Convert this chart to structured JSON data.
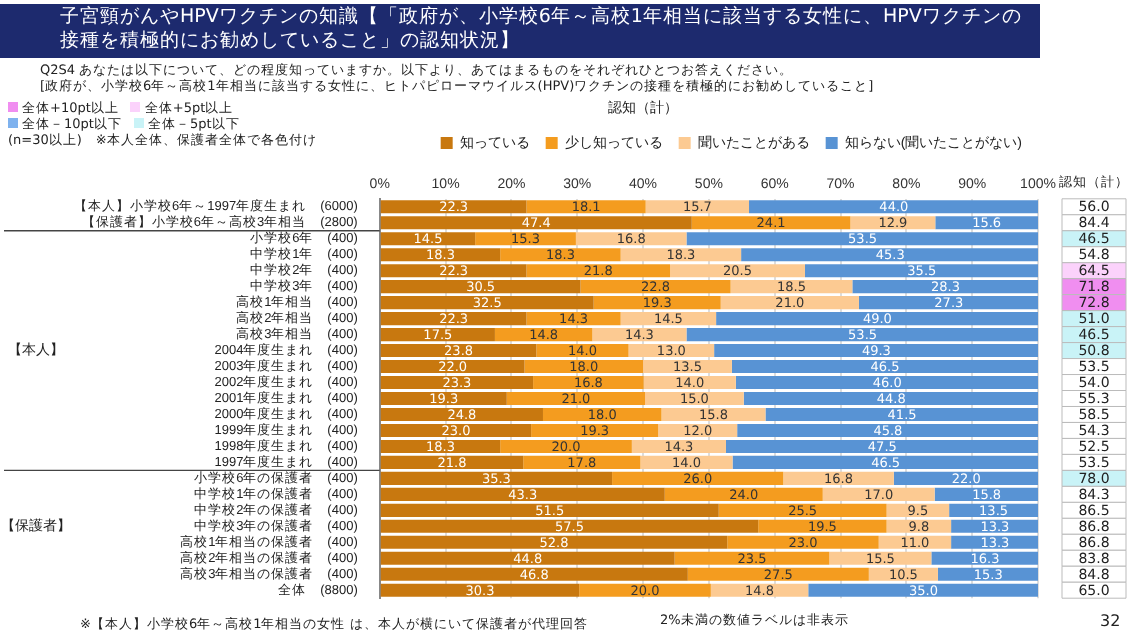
{
  "chart_data": {
    "type": "bar",
    "orientation": "horizontal",
    "stacked": true,
    "title": "子宮頸がんやHPVワクチンの知識【「政府が、小学校6年～高校1年相当に該当する女性に、HPVワクチンの接種を積極的にお勧めしていること」の認知状況】",
    "subtitle": "Q2S4  あなたは以下について、どの程度知っていますか。以下より、あてはまるものをそれぞれひとつお答えください。\n[政府が、小学校6年～高校1年相当に該当する女性に、ヒトパピローマウイルス(HPV)ワクチンの接種を積極的にお勧めしていること]",
    "categories": [
      "【本人】小学校6年～1997年度生まれ　(6000)",
      "【保護者】小学校6年～高校3年相当　(2800)",
      "小学校6年　(400)",
      "中学校1年　(400)",
      "中学校2年　(400)",
      "中学校3年　(400)",
      "高校1年相当　(400)",
      "高校2年相当　(400)",
      "高校3年相当　(400)",
      "2004年度生まれ　(400)",
      "2003年度生まれ　(400)",
      "2002年度生まれ　(400)",
      "2001年度生まれ　(400)",
      "2000年度生まれ　(400)",
      "1999年度生まれ　(400)",
      "1998年度生まれ　(400)",
      "1997年度生まれ　(400)",
      "小学校6年の保護者　(400)",
      "中学校1年の保護者　(400)",
      "中学校2年の保護者　(400)",
      "中学校3年の保護者　(400)",
      "高校1年相当の保護者　(400)",
      "高校2年相当の保護者　(400)",
      "高校3年相当の保護者　(400)",
      "全体　(8800)"
    ],
    "series": [
      {
        "name": "知っている",
        "color": "#c8780f",
        "values": [
          22.3,
          47.4,
          14.5,
          18.3,
          22.3,
          30.5,
          32.5,
          22.3,
          17.5,
          23.8,
          22.0,
          23.3,
          19.3,
          24.8,
          23.0,
          18.3,
          21.8,
          35.3,
          43.3,
          51.5,
          57.5,
          52.8,
          44.8,
          46.8,
          30.3
        ],
        "value_labels": [
          "22.3",
          "47.4",
          "14.5",
          "18.3",
          "22.3",
          "30.5",
          "32.5",
          "22.3",
          "17.5",
          "23.8",
          "22.0",
          "23.3",
          "19.3",
          "24.8",
          "23.0",
          "18.3",
          "21.8",
          "35.3",
          "43.3",
          "51.5",
          "57.5",
          "52.8",
          "44.8",
          "46.8",
          "30.3"
        ]
      },
      {
        "name": "少し知っている",
        "color": "#f49c1f",
        "values": [
          18.1,
          24.1,
          15.3,
          18.3,
          21.8,
          22.8,
          19.3,
          14.3,
          14.8,
          14.0,
          18.0,
          16.8,
          21.0,
          18.0,
          19.3,
          20.0,
          17.8,
          26.0,
          24.0,
          25.5,
          19.5,
          23.0,
          23.5,
          27.5,
          20.0
        ],
        "value_labels": [
          "18.1",
          "24.1",
          "15.3",
          "18.3",
          "21.8",
          "22.8",
          "19.3",
          "14.3",
          "14.8",
          "14.0",
          "18.0",
          "16.8",
          "21.0",
          "18.0",
          "19.3",
          "20.0",
          "17.8",
          "26.0",
          "24.0",
          "25.5",
          "19.5",
          "23.0",
          "23.5",
          "27.5",
          "20.0"
        ]
      },
      {
        "name": "聞いたことがある",
        "color": "#fcca92",
        "values": [
          15.7,
          12.9,
          16.8,
          18.3,
          20.5,
          18.5,
          21.0,
          14.5,
          14.3,
          13.0,
          13.5,
          14.0,
          15.0,
          15.8,
          12.0,
          14.3,
          14.0,
          16.8,
          17.0,
          9.5,
          9.8,
          11.0,
          15.5,
          10.5,
          14.8
        ],
        "value_labels": [
          "15.7",
          "12.9",
          "16.8",
          "18.3",
          "20.5",
          "18.5",
          "21.0",
          "14.5",
          "14.3",
          "13.0",
          "13.5",
          "14.0",
          "15.0",
          "15.8",
          "12.0",
          "14.3",
          "14.0",
          "16.8",
          "17.0",
          "9.5",
          "9.8",
          "11.0",
          "15.5",
          "10.5",
          "14.8"
        ]
      },
      {
        "name": "知らない(聞いたことがない)",
        "color": "#5893d4",
        "values": [
          44.0,
          15.6,
          53.5,
          45.3,
          35.5,
          28.3,
          27.3,
          49.0,
          53.5,
          49.3,
          46.5,
          46.0,
          44.8,
          41.5,
          45.8,
          47.5,
          46.5,
          22.0,
          15.8,
          13.5,
          13.3,
          13.3,
          16.3,
          15.3,
          35.0
        ],
        "value_labels": [
          "44.0",
          "15.6",
          "53.5",
          "45.3",
          "35.5",
          "28.3",
          "27.3",
          "49.0",
          "53.5",
          "49.3",
          "46.5",
          "46.0",
          "44.8",
          "41.5",
          "45.8",
          "47.5",
          "46.5",
          "22.0",
          "15.8",
          "13.5",
          "13.3",
          "13.3",
          "16.3",
          "15.3",
          "35.0"
        ]
      }
    ],
    "xlim": [
      0,
      100
    ],
    "xticks": [
      {
        "value": 0,
        "label": "0%"
      },
      {
        "value": 10,
        "label": "10%"
      },
      {
        "value": 20,
        "label": "20%"
      },
      {
        "value": 30,
        "label": "30%"
      },
      {
        "value": 40,
        "label": "40%"
      },
      {
        "value": 50,
        "label": "50%"
      },
      {
        "value": 60,
        "label": "60%"
      },
      {
        "value": 70,
        "label": "70%"
      },
      {
        "value": 80,
        "label": "80%"
      },
      {
        "value": 90,
        "label": "90%"
      },
      {
        "value": 100,
        "label": "100%"
      }
    ],
    "grid": "x",
    "legend": "top",
    "annotations": [
      "認知（計）",
      "認知（計）",
      "【本人】",
      "【保護者】",
      "全体+10pt以上",
      "全体+5pt以上",
      "全体－10pt以下",
      "全体－5pt以下",
      "(n=30以上)　※本人全体、保護者全体で各色付け",
      "※【本人】小学校6年～高校1年相当の女性 は、本人が横にいて保護者が代理回答",
      "2%未満の数値ラベルは非表示",
      "32",
      "56.0",
      "84.4",
      "46.5",
      "54.8",
      "64.5",
      "71.8",
      "72.8",
      "51.0",
      "46.5",
      "50.8",
      "53.5",
      "54.0",
      "55.3",
      "58.5",
      "54.3",
      "52.5",
      "53.5",
      "78.0",
      "84.3",
      "86.5",
      "86.8",
      "86.8",
      "83.8",
      "84.8",
      "65.0"
    ]
  }
}
